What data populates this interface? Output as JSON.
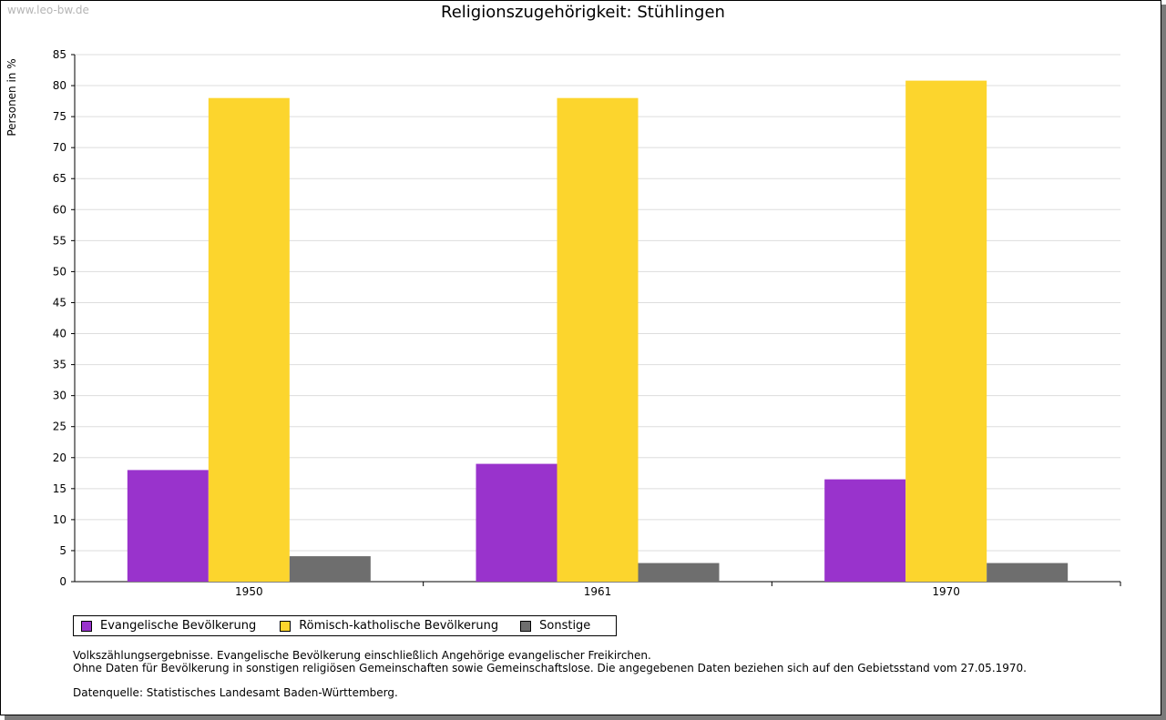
{
  "watermark": "www.leo-bw.de",
  "chart_data": {
    "type": "bar",
    "title": "Religionszugehörigkeit: Stühlingen",
    "xlabel": "",
    "ylabel": "Personen in %",
    "ylim": [
      0,
      85
    ],
    "yticks": [
      "0",
      "5",
      "10",
      "15",
      "20",
      "25",
      "30",
      "35",
      "40",
      "45",
      "50",
      "55",
      "60",
      "65",
      "70",
      "75",
      "80",
      "85"
    ],
    "categories": [
      "1950",
      "1961",
      "1970"
    ],
    "series": [
      {
        "name": "Evangelische Bevölkerung",
        "color": "#9933cc",
        "values": [
          18.0,
          19.0,
          16.5
        ]
      },
      {
        "name": "Römisch-katholische Bevölkerung",
        "color": "#fcd52d",
        "values": [
          78.0,
          78.0,
          80.8
        ]
      },
      {
        "name": "Sonstige",
        "color": "#6e6e6e",
        "values": [
          4.1,
          3.0,
          3.0
        ]
      }
    ],
    "grid": true,
    "legend_position": "bottom-left"
  },
  "notes": {
    "line1": "Volkszählungsergebnisse. Evangelische Bevölkerung einschließlich Angehörige evangelischer Freikirchen.",
    "line2": "Ohne Daten für Bevölkerung in sonstigen religiösen Gemeinschaften sowie Gemeinschaftslose. Die angegebenen Daten beziehen sich auf den Gebietsstand vom 27.05.1970.",
    "source": "Datenquelle: Statistisches Landesamt Baden-Württemberg."
  }
}
